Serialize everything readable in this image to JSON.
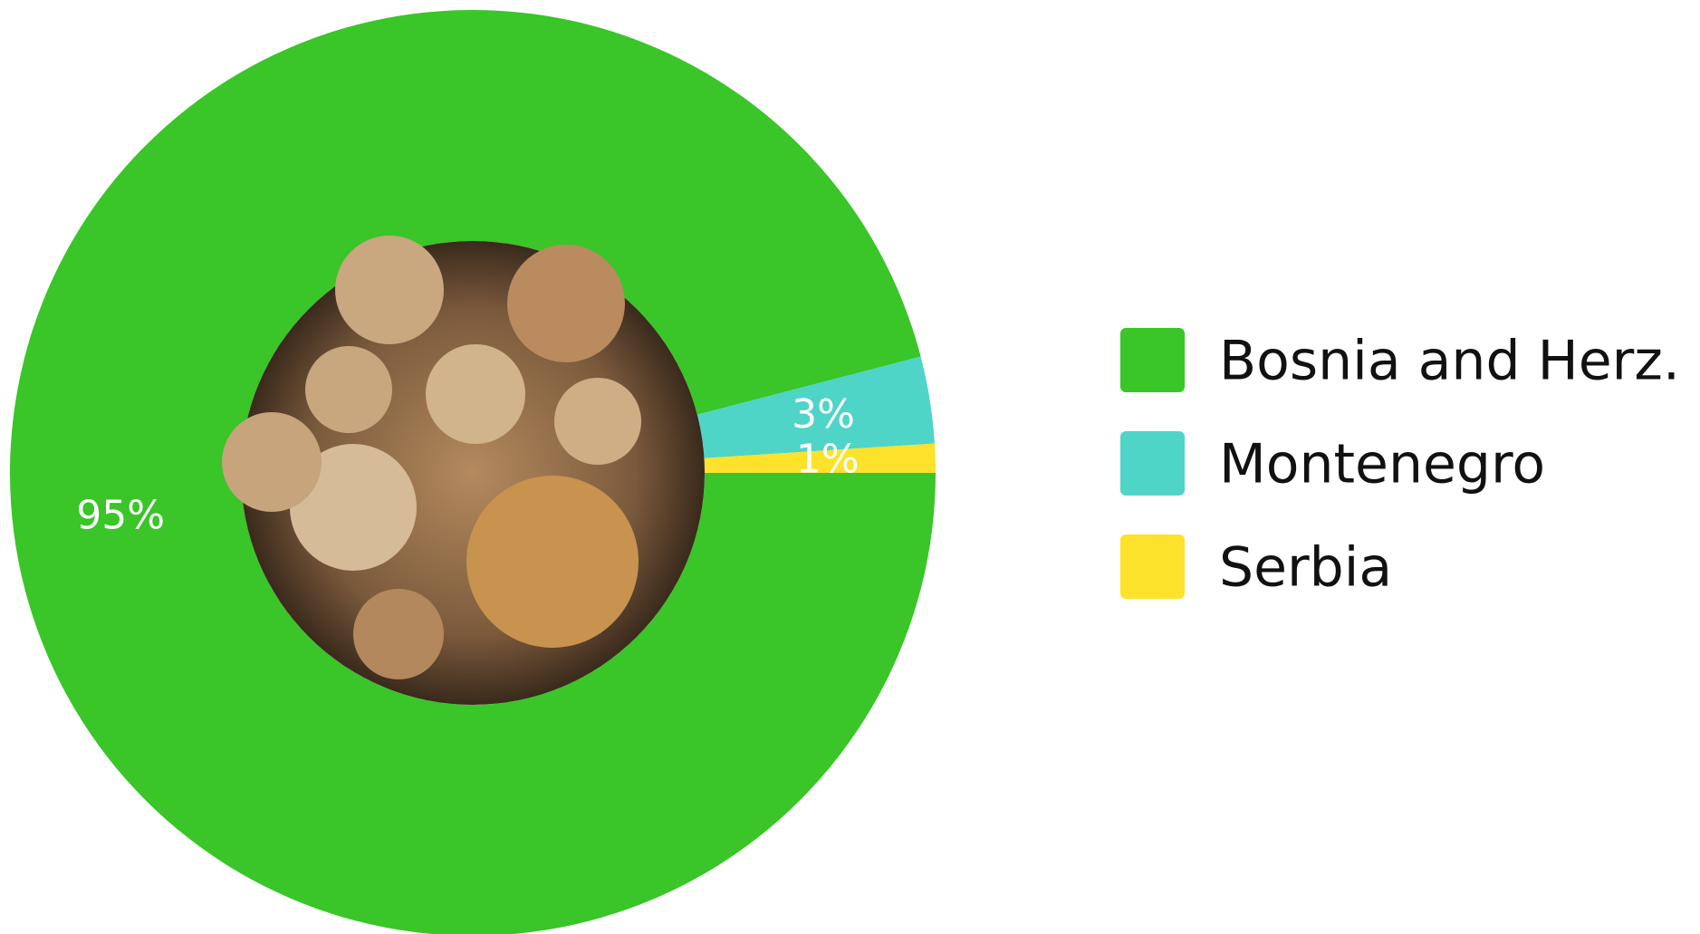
{
  "chart_data": {
    "type": "donut",
    "categories": [
      "Bosnia and Herz.",
      "Montenegro",
      "Serbia"
    ],
    "values": [
      95,
      3,
      1
    ],
    "value_labels": [
      "95%",
      "3%",
      "1%"
    ],
    "colors": [
      "#3ac528",
      "#4fd4c8",
      "#fce22a"
    ],
    "legend": "right"
  }
}
